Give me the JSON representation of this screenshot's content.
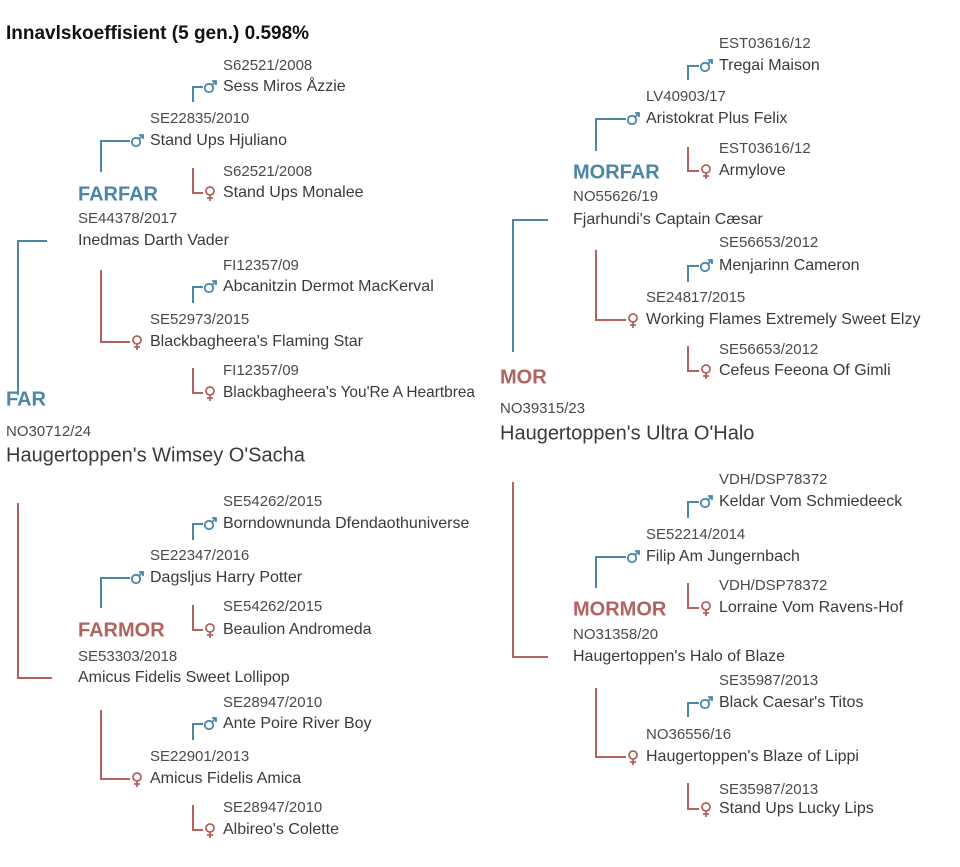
{
  "title": "Innavlskoeffisient (5 gen.) 0.598%",
  "nodes": [
    {
      "label": "FAR",
      "reg": "NO30712/24",
      "name": "Haugertoppen's Wimsey O'Sacha"
    },
    {
      "label": "FARFAR",
      "reg": "SE44378/2017",
      "name": "Inedmas Darth Vader"
    },
    {
      "reg": "SE22835/2010",
      "name": "Stand Ups Hjuliano"
    },
    {
      "reg": "S62521/2008",
      "name": "Sess Miros Åzzie"
    },
    {
      "reg": "S62521/2008",
      "name": "Stand Ups Monalee"
    },
    {
      "reg": "SE52973/2015",
      "name": "Blackbagheera's Flaming Star"
    },
    {
      "reg": "FI12357/09",
      "name": "Abcanitzin Dermot MacKerval"
    },
    {
      "reg": "FI12357/09",
      "name": "Blackbagheera's You'Re A Heartbrea"
    },
    {
      "label": "FARMOR",
      "reg": "SE53303/2018",
      "name": "Amicus Fidelis Sweet Lollipop"
    },
    {
      "reg": "SE22347/2016",
      "name": "Dagsljus Harry Potter"
    },
    {
      "reg": "SE54262/2015",
      "name": "Borndownunda Dfendaothuniverse"
    },
    {
      "reg": "SE54262/2015",
      "name": "Beaulion Andromeda"
    },
    {
      "reg": "SE22901/2013",
      "name": "Amicus Fidelis Amica"
    },
    {
      "reg": "SE28947/2010",
      "name": "Ante Poire River Boy"
    },
    {
      "reg": "SE28947/2010",
      "name": "Albireo's Colette"
    },
    {
      "label": "MOR",
      "reg": "NO39315/23",
      "name": "Haugertoppen's Ultra O'Halo"
    },
    {
      "label": "MORFAR",
      "reg": "NO55626/19",
      "name": "Fjarhundi's Captain Cæsar"
    },
    {
      "reg": "LV40903/17",
      "name": "Aristokrat Plus Felix"
    },
    {
      "reg": "EST03616/12",
      "name": "Tregai Maison"
    },
    {
      "reg": "EST03616/12",
      "name": "Armylove"
    },
    {
      "reg": "SE24817/2015",
      "name": "Working Flames Extremely Sweet Elzy"
    },
    {
      "reg": "SE56653/2012",
      "name": "Menjarinn Cameron"
    },
    {
      "reg": "SE56653/2012",
      "name": "Cefeus Feeona Of Gimli"
    },
    {
      "label": "MORMOR",
      "reg": "NO31358/20",
      "name": "Haugertoppen's Halo of Blaze"
    },
    {
      "reg": "SE52214/2014",
      "name": "Filip Am Jungernbach"
    },
    {
      "reg": "VDH/DSP78372",
      "name": "Keldar Vom Schmiedeeck"
    },
    {
      "reg": "VDH/DSP78372",
      "name": "Lorraine Vom Ravens-Hof"
    },
    {
      "reg": "NO36556/16",
      "name": "Haugertoppen's Blaze of Lippi"
    },
    {
      "reg": "SE35987/2013",
      "name": "Black Caesar's Titos"
    },
    {
      "reg": "SE35987/2013",
      "name": "Stand Ups Lucky Lips"
    }
  ]
}
